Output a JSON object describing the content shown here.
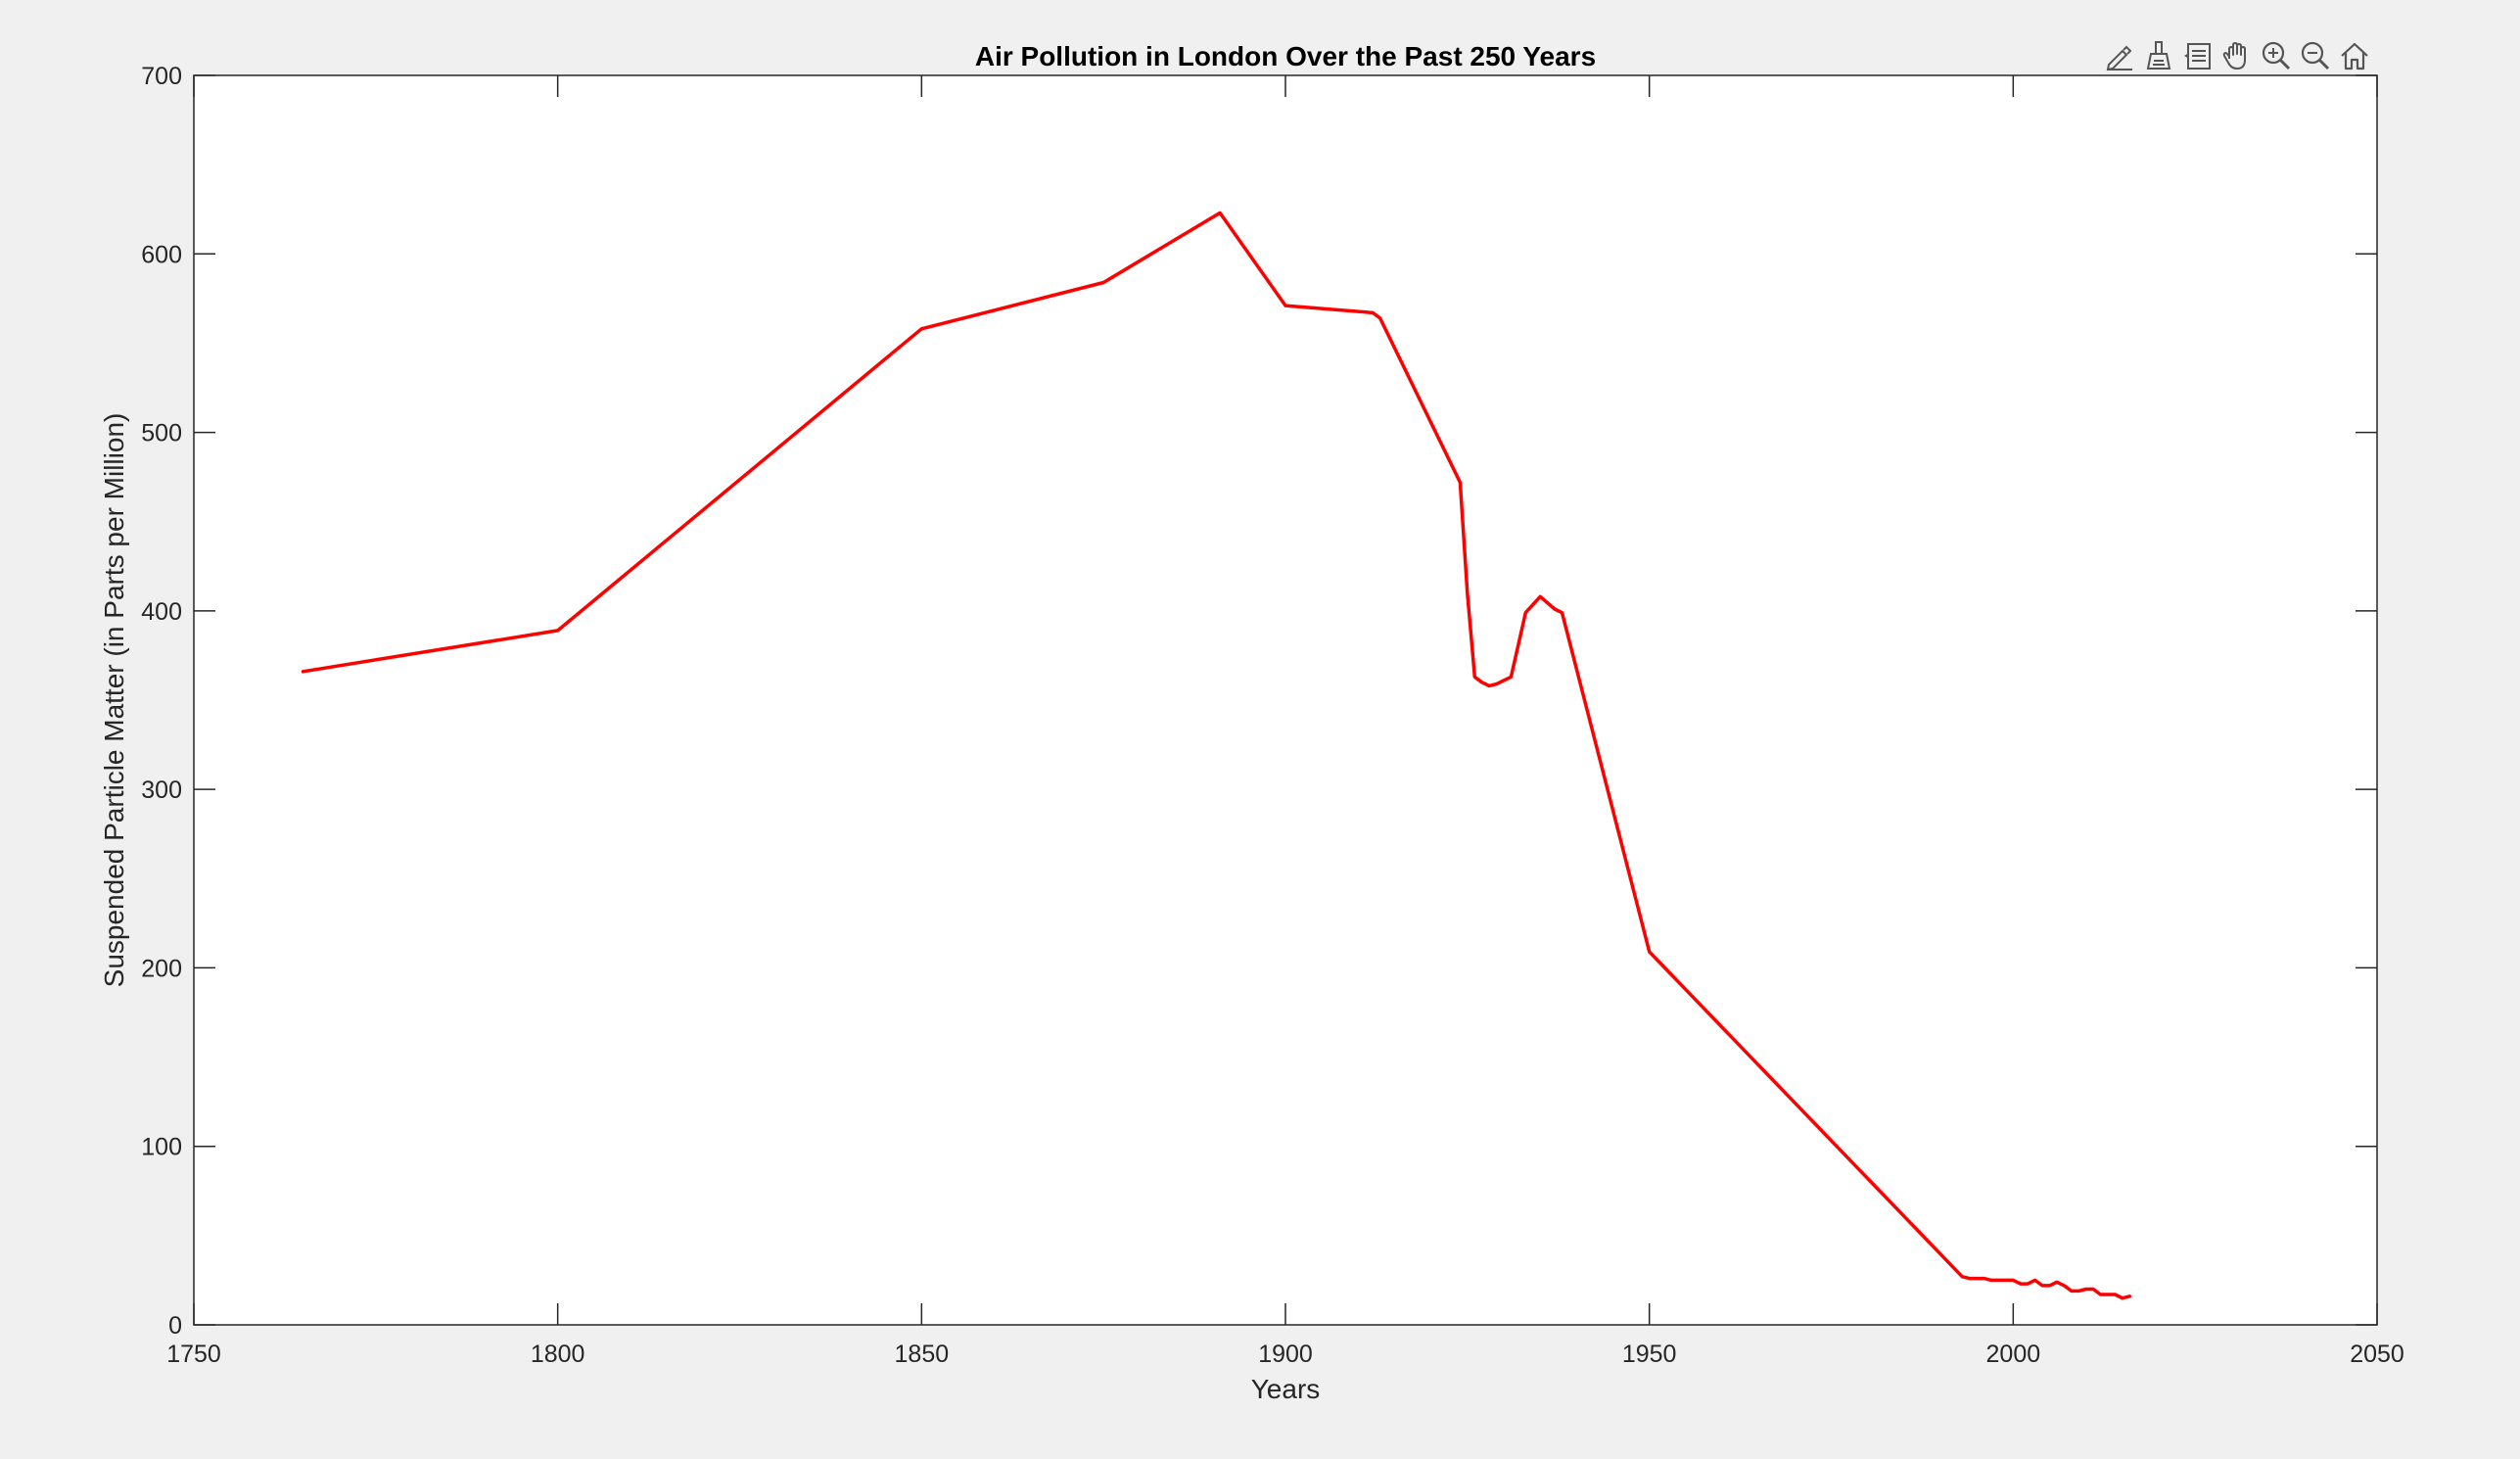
{
  "colors": {
    "figure_bg": "#f0f0f0",
    "axes_bg": "#ffffff",
    "axis": "#262626",
    "line": "#ff0000",
    "icon": "#555555"
  },
  "toolbar": {
    "items": [
      {
        "name": "edit-plot-icon"
      },
      {
        "name": "data-brush-icon"
      },
      {
        "name": "data-cursor-icon"
      },
      {
        "name": "pan-icon"
      },
      {
        "name": "zoom-in-icon"
      },
      {
        "name": "zoom-out-icon"
      },
      {
        "name": "restore-view-icon"
      }
    ]
  },
  "chart_data": {
    "type": "line",
    "title": "Air Pollution in London Over the Past 250 Years",
    "xlabel": "Years",
    "ylabel": "Suspended Particle Matter (in Parts per Million)",
    "xlim": [
      1750,
      2050
    ],
    "ylim": [
      0,
      700
    ],
    "xticks": [
      "1750",
      "1800",
      "1850",
      "1900",
      "1950",
      "2000",
      "2050"
    ],
    "yticks": [
      "0",
      "100",
      "200",
      "300",
      "400",
      "500",
      "600",
      "700"
    ],
    "grid": false,
    "series": [
      {
        "color": "#ff0000",
        "x": [
          1765,
          1800,
          1850,
          1875,
          1891,
          1900,
          1912,
          1913,
          1924,
          1925,
          1926,
          1927,
          1928,
          1929,
          1930,
          1931,
          1933,
          1935,
          1937,
          1938,
          1950,
          1993,
          1994,
          1995,
          1996,
          1997,
          1998,
          1999,
          2000,
          2001,
          2002,
          2003,
          2004,
          2005,
          2006,
          2007,
          2008,
          2009,
          2010,
          2011,
          2012,
          2013,
          2014,
          2015,
          2016
        ],
        "y": [
          366,
          389,
          558,
          584,
          623,
          571,
          567,
          564,
          472,
          410,
          363,
          360,
          358,
          359,
          361,
          363,
          399,
          408,
          401,
          399,
          209,
          27,
          26,
          26,
          26,
          25,
          25,
          25,
          25,
          23,
          23,
          25,
          22,
          22,
          24,
          22,
          19,
          19,
          20,
          20,
          17,
          17,
          17,
          15,
          16
        ]
      }
    ]
  }
}
